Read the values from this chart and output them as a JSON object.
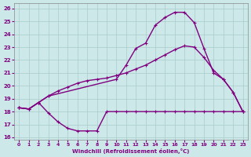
{
  "xlabel": "Windchill (Refroidissement éolien,°C)",
  "xlim": [
    -0.5,
    23.5
  ],
  "ylim": [
    15.8,
    26.4
  ],
  "yticks": [
    16,
    17,
    18,
    19,
    20,
    21,
    22,
    23,
    24,
    25,
    26
  ],
  "xticks": [
    0,
    1,
    2,
    3,
    4,
    5,
    6,
    7,
    8,
    9,
    10,
    11,
    12,
    13,
    14,
    15,
    16,
    17,
    18,
    19,
    20,
    21,
    22,
    23
  ],
  "bg_color": "#cce8e8",
  "grid_color": "#aacccc",
  "line_color": "#800080",
  "line1_x": [
    0,
    1,
    2,
    3,
    10,
    11,
    12,
    13,
    14,
    15,
    16,
    17,
    18,
    19,
    20,
    21,
    22,
    23
  ],
  "line1_y": [
    18.3,
    18.2,
    18.7,
    19.2,
    20.5,
    21.6,
    22.9,
    23.3,
    24.7,
    25.3,
    25.7,
    25.7,
    24.9,
    22.9,
    21.0,
    20.5,
    19.5,
    18.0
  ],
  "line2_x": [
    0,
    1,
    2,
    3,
    4,
    5,
    6,
    7,
    8,
    9,
    10,
    11,
    12,
    13,
    14,
    15,
    16,
    17,
    18,
    19,
    20,
    21,
    22,
    23
  ],
  "line2_y": [
    18.3,
    18.2,
    18.7,
    19.2,
    19.6,
    19.9,
    20.2,
    20.4,
    20.5,
    20.6,
    20.8,
    21.0,
    21.3,
    21.6,
    22.0,
    22.4,
    22.8,
    23.1,
    23.0,
    22.2,
    21.2,
    20.5,
    19.5,
    18.0
  ],
  "line3_x": [
    0,
    1,
    2,
    3,
    4,
    5,
    6,
    7,
    8,
    9,
    10,
    11,
    12,
    13,
    14,
    15,
    16,
    17,
    18,
    19,
    20,
    21,
    22,
    23
  ],
  "line3_y": [
    18.3,
    18.2,
    18.7,
    17.9,
    17.2,
    16.7,
    16.5,
    16.5,
    16.5,
    18.0,
    18.0,
    18.0,
    18.0,
    18.0,
    18.0,
    18.0,
    18.0,
    18.0,
    18.0,
    18.0,
    18.0,
    18.0,
    18.0,
    18.0
  ],
  "marker": "+",
  "markersize": 3.5,
  "linewidth": 1.0
}
